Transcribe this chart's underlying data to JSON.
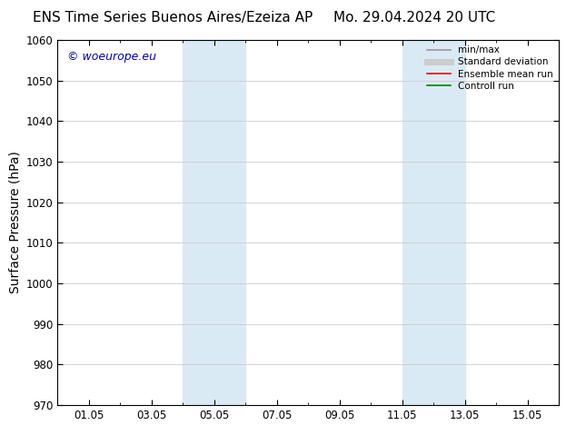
{
  "title_left": "ENS Time Series Buenos Aires/Ezeiza AP",
  "title_right": "Mo. 29.04.2024 20 UTC",
  "ylabel": "Surface Pressure (hPa)",
  "ylim": [
    970,
    1060
  ],
  "yticks": [
    970,
    980,
    990,
    1000,
    1010,
    1020,
    1030,
    1040,
    1050,
    1060
  ],
  "xtick_labels": [
    "01.05",
    "03.05",
    "05.05",
    "07.05",
    "09.05",
    "11.05",
    "13.05",
    "15.05"
  ],
  "xtick_positions": [
    1,
    3,
    5,
    7,
    9,
    11,
    13,
    15
  ],
  "xlim": [
    0,
    16
  ],
  "shaded_bands": [
    {
      "x_start": 4,
      "x_end": 6,
      "color": "#daeaf5"
    },
    {
      "x_start": 11,
      "x_end": 13,
      "color": "#daeaf5"
    }
  ],
  "watermark_text": "© woeurope.eu",
  "watermark_color": "#0000bb",
  "legend_entries": [
    {
      "label": "min/max",
      "color": "#999999",
      "lw": 1.2,
      "style": "solid"
    },
    {
      "label": "Standard deviation",
      "color": "#cccccc",
      "lw": 5,
      "style": "solid"
    },
    {
      "label": "Ensemble mean run",
      "color": "#ff0000",
      "lw": 1.2,
      "style": "solid"
    },
    {
      "label": "Controll run",
      "color": "#008000",
      "lw": 1.2,
      "style": "solid"
    }
  ],
  "bg_color": "#ffffff",
  "grid_color": "#cccccc",
  "title_fontsize": 11,
  "axis_fontsize": 10,
  "tick_fontsize": 8.5,
  "watermark_fontsize": 9
}
